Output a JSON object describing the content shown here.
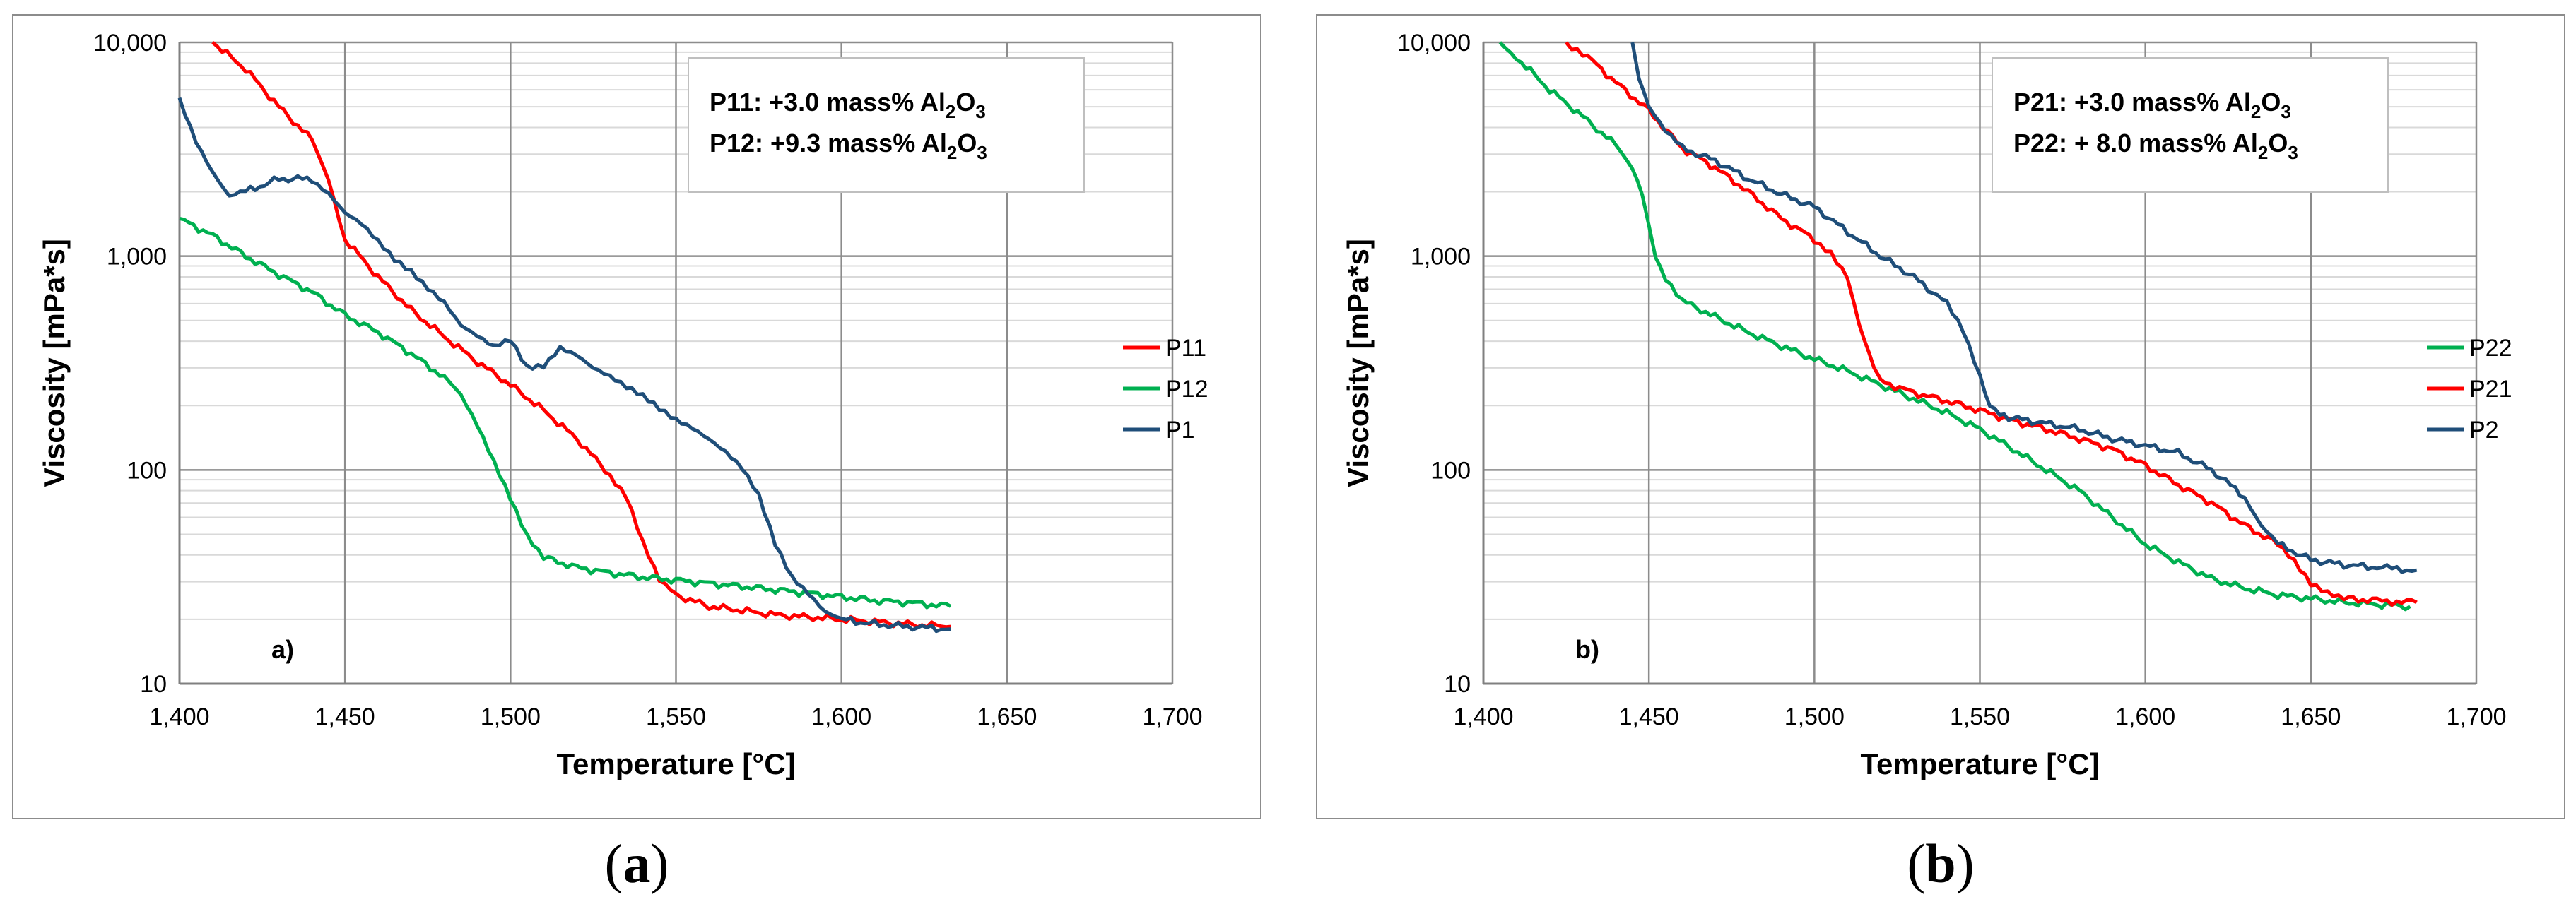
{
  "chart_data": [
    {
      "type": "line",
      "panel_label": "a)",
      "xlabel": "Temperature [°C]",
      "ylabel": "Viscosity [mPa*s]",
      "xlim": [
        1400,
        1700
      ],
      "ylim": [
        10,
        10000
      ],
      "yscale": "log",
      "x_ticks": [
        "1,400",
        "1,450",
        "1,500",
        "1,550",
        "1,600",
        "1,650",
        "1,700"
      ],
      "y_ticks": [
        "10",
        "100",
        "1,000",
        "10,000"
      ],
      "annotations": [
        {
          "prefix": "P11: +3.0 mass% Al",
          "sub1": "2",
          "mid": "O",
          "sub2": "3"
        },
        {
          "prefix": "P12: +9.3 mass% Al",
          "sub1": "2",
          "mid": "O",
          "sub2": "3"
        }
      ],
      "legend": [
        "P11",
        "P12",
        "P1"
      ],
      "series": [
        {
          "name": "P11",
          "color": "#ff0000",
          "x": [
            1410,
            1420,
            1430,
            1440,
            1445,
            1450,
            1460,
            1470,
            1480,
            1490,
            1500,
            1510,
            1520,
            1530,
            1535,
            1540,
            1545,
            1550,
            1560,
            1570,
            1580,
            1590,
            1600,
            1610,
            1620,
            1633
          ],
          "y": [
            10000,
            7500,
            5000,
            3500,
            2300,
            1200,
            800,
            560,
            420,
            320,
            250,
            190,
            140,
            95,
            75,
            45,
            30,
            26,
            23,
            22,
            21,
            20.5,
            20,
            19.5,
            19,
            18.5
          ]
        },
        {
          "name": "P12",
          "color": "#00b050",
          "x": [
            1400,
            1410,
            1420,
            1430,
            1440,
            1450,
            1460,
            1470,
            1480,
            1485,
            1490,
            1495,
            1500,
            1505,
            1510,
            1520,
            1530,
            1540,
            1550,
            1560,
            1570,
            1580,
            1590,
            1600,
            1610,
            1620,
            1633
          ],
          "y": [
            1500,
            1250,
            1000,
            820,
            680,
            530,
            440,
            350,
            270,
            220,
            160,
            110,
            75,
            50,
            39,
            35,
            33,
            31.5,
            30.5,
            29.5,
            28.5,
            27.5,
            26.5,
            25.5,
            24.5,
            24,
            23
          ]
        },
        {
          "name": "P1",
          "color": "#1f4e79",
          "x": [
            1400,
            1405,
            1410,
            1415,
            1420,
            1430,
            1440,
            1445,
            1450,
            1455,
            1460,
            1465,
            1470,
            1475,
            1480,
            1485,
            1490,
            1495,
            1500,
            1505,
            1510,
            1515,
            1520,
            1525,
            1530,
            1535,
            1540,
            1545,
            1550,
            1555,
            1560,
            1565,
            1570,
            1575,
            1580,
            1585,
            1590,
            1595,
            1600,
            1610,
            1620,
            1633
          ],
          "y": [
            5500,
            3500,
            2500,
            1900,
            2000,
            2300,
            2300,
            2000,
            1600,
            1400,
            1150,
            950,
            850,
            720,
            620,
            480,
            420,
            370,
            400,
            300,
            310,
            380,
            350,
            300,
            270,
            240,
            220,
            195,
            175,
            160,
            140,
            120,
            100,
            75,
            45,
            32,
            27,
            22,
            20,
            19,
            18.5,
            18
          ]
        }
      ]
    },
    {
      "type": "line",
      "panel_label": "b)",
      "xlabel": "Temperature [°C]",
      "ylabel": "Viscosity [mPa*s]",
      "xlim": [
        1400,
        1700
      ],
      "ylim": [
        10,
        10000
      ],
      "yscale": "log",
      "x_ticks": [
        "1,400",
        "1,450",
        "1,500",
        "1,550",
        "1,600",
        "1,650",
        "1,700"
      ],
      "y_ticks": [
        "10",
        "100",
        "1,000",
        "10,000"
      ],
      "annotations": [
        {
          "prefix": "P21: +3.0 mass% Al",
          "sub1": "2",
          "mid": "O",
          "sub2": "3"
        },
        {
          "prefix": "P22: + 8.0 mass% Al",
          "sub1": "2",
          "mid": "O",
          "sub2": "3"
        }
      ],
      "legend": [
        "P22",
        "P21",
        "P2"
      ],
      "series": [
        {
          "name": "P22",
          "color": "#00b050",
          "x": [
            1405,
            1410,
            1420,
            1430,
            1440,
            1445,
            1448,
            1450,
            1452,
            1455,
            1460,
            1470,
            1480,
            1490,
            1500,
            1510,
            1520,
            1530,
            1540,
            1550,
            1560,
            1570,
            1580,
            1590,
            1600,
            1610,
            1620,
            1630,
            1640,
            1650,
            1660,
            1670,
            1680
          ],
          "y": [
            10000,
            8500,
            6000,
            4500,
            3300,
            2600,
            2000,
            1400,
            1000,
            800,
            620,
            520,
            440,
            380,
            330,
            290,
            250,
            215,
            185,
            155,
            125,
            100,
            80,
            60,
            45,
            37,
            31,
            28,
            26,
            25,
            24,
            23.5,
            23
          ]
        },
        {
          "name": "P21",
          "color": "#ff0000",
          "x": [
            1425,
            1430,
            1440,
            1450,
            1460,
            1470,
            1480,
            1490,
            1500,
            1505,
            1510,
            1512,
            1515,
            1518,
            1520,
            1530,
            1540,
            1550,
            1560,
            1570,
            1580,
            1590,
            1600,
            1610,
            1620,
            1630,
            1640,
            1645,
            1650,
            1655,
            1660,
            1670,
            1682
          ],
          "y": [
            10000,
            9000,
            6500,
            4800,
            3200,
            2600,
            2000,
            1500,
            1200,
            1050,
            800,
            600,
            400,
            300,
            260,
            230,
            210,
            190,
            170,
            155,
            140,
            125,
            105,
            85,
            70,
            55,
            45,
            38,
            30,
            27,
            25,
            24.5,
            24
          ]
        },
        {
          "name": "P2",
          "color": "#1f4e79",
          "x": [
            1445,
            1447,
            1450,
            1455,
            1460,
            1470,
            1480,
            1490,
            1500,
            1510,
            1520,
            1530,
            1540,
            1545,
            1550,
            1553,
            1556,
            1560,
            1570,
            1580,
            1590,
            1600,
            1610,
            1620,
            1630,
            1635,
            1640,
            1650,
            1660,
            1670,
            1682
          ],
          "y": [
            10000,
            7000,
            5000,
            3800,
            3200,
            2800,
            2300,
            1950,
            1700,
            1300,
            1000,
            800,
            600,
            450,
            280,
            200,
            180,
            175,
            165,
            155,
            140,
            130,
            120,
            100,
            75,
            55,
            45,
            38,
            36,
            35,
            34
          ]
        }
      ]
    }
  ],
  "captions": [
    {
      "open": "(",
      "letter": "a",
      "close": ")"
    },
    {
      "open": "(",
      "letter": "b",
      "close": ")"
    }
  ]
}
